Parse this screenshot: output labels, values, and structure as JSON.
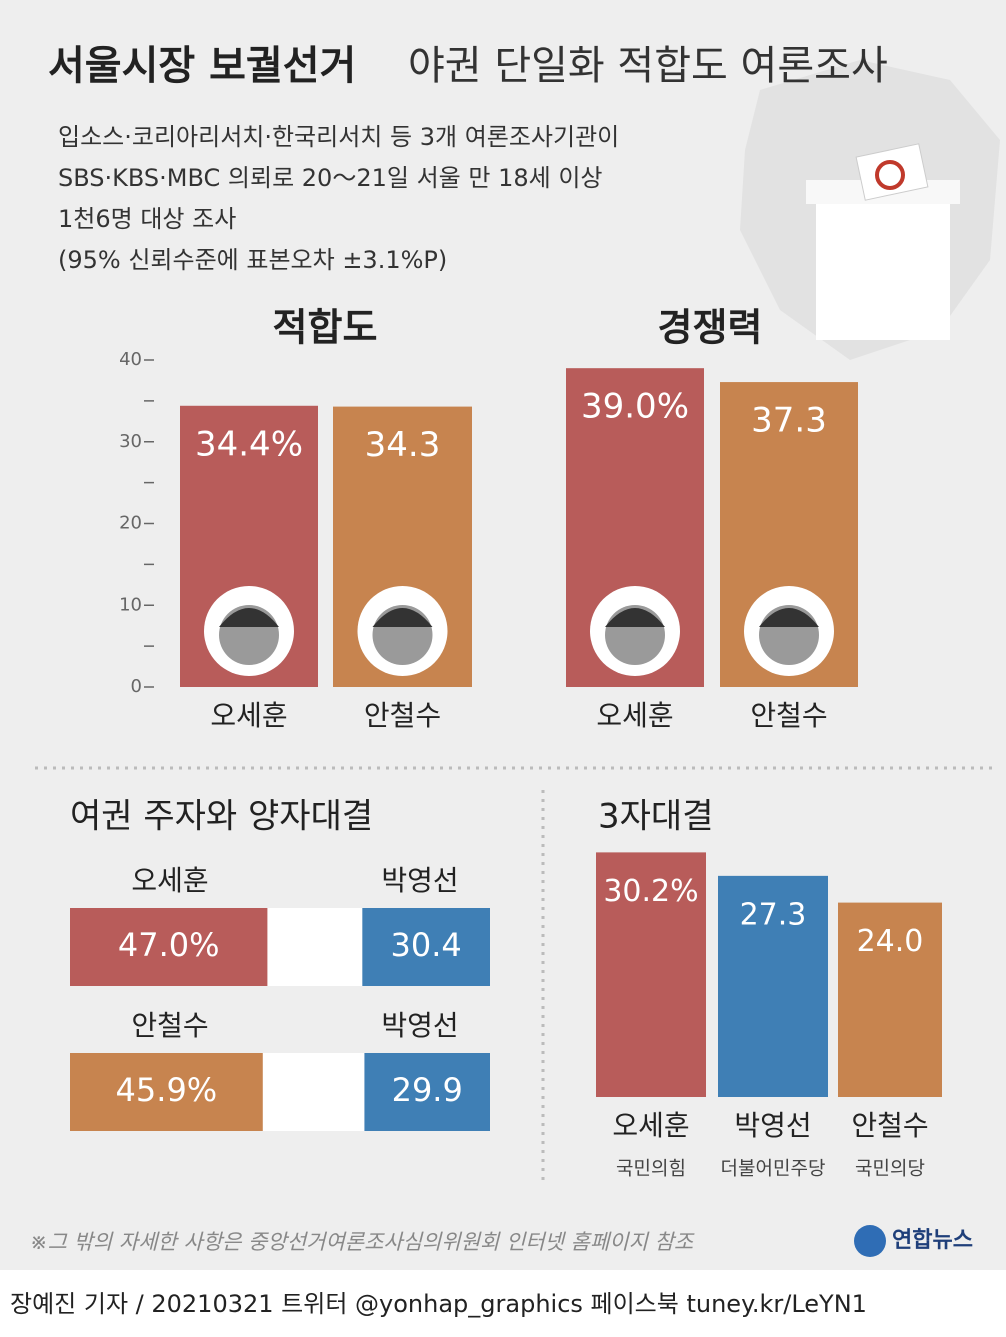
{
  "header": {
    "title_bold": "서울시장 보궐선거",
    "title_rest": "야권 단일화 적합도 여론조사",
    "description": [
      "입소스·코리아리서치·한국리서치 등 3개 여론조사기관이",
      "SBS·KBS·MBC 의뢰로 20～21일 서울 만 18세 이상",
      "1천6명 대상 조사",
      "(95% 신뢰수준에 표본오차 ±3.1%P)"
    ]
  },
  "chart_data": [
    {
      "type": "bar",
      "title": "적합도",
      "categories": [
        "오세훈",
        "안철수"
      ],
      "values": [
        34.4,
        34.3
      ],
      "value_labels": [
        "34.4%",
        "34.3"
      ],
      "colors": [
        "#b85c5a",
        "#c7844f"
      ],
      "ylim": [
        0,
        40
      ],
      "yticks": [
        0,
        10,
        20,
        30,
        40
      ],
      "minor_yticks": [
        5,
        15,
        25,
        35
      ]
    },
    {
      "type": "bar",
      "title": "경쟁력",
      "categories": [
        "오세훈",
        "안철수"
      ],
      "values": [
        39.0,
        37.3
      ],
      "value_labels": [
        "39.0%",
        "37.3"
      ],
      "colors": [
        "#b85c5a",
        "#c7844f"
      ],
      "ylim": [
        0,
        40
      ]
    },
    {
      "type": "pair",
      "title": "여권 주자와 양자대결",
      "xlim": [
        0,
        100
      ],
      "rows": [
        {
          "left": "오세훈",
          "right": "박영선",
          "values": [
            47.0,
            30.4
          ],
          "value_labels": [
            "47.0%",
            "30.4"
          ],
          "colors": [
            "#b85c5a",
            "#3f7fb5"
          ]
        },
        {
          "left": "안철수",
          "right": "박영선",
          "values": [
            45.9,
            29.9
          ],
          "value_labels": [
            "45.9%",
            "29.9"
          ],
          "colors": [
            "#c7844f",
            "#3f7fb5"
          ]
        }
      ]
    },
    {
      "type": "bar",
      "title": "3자대결",
      "categories": [
        "오세훈",
        "박영선",
        "안철수"
      ],
      "parties": [
        "국민의힘",
        "더불어민주당",
        "국민의당"
      ],
      "values": [
        30.2,
        27.3,
        24.0
      ],
      "value_labels": [
        "30.2%",
        "27.3",
        "24.0"
      ],
      "colors": [
        "#b85c5a",
        "#3f7fb5",
        "#c7844f"
      ],
      "ylim": [
        0,
        40
      ]
    }
  ],
  "note": "※그 밖의 자세한 사항은 중앙선거여론조사심의위원회 인터넷 홈페이지 참조",
  "logo": "연합뉴스",
  "footer": "장예진 기자 / 20210321 트위터 @yonhap_graphics  페이스북 tuney.kr/LeYN1"
}
